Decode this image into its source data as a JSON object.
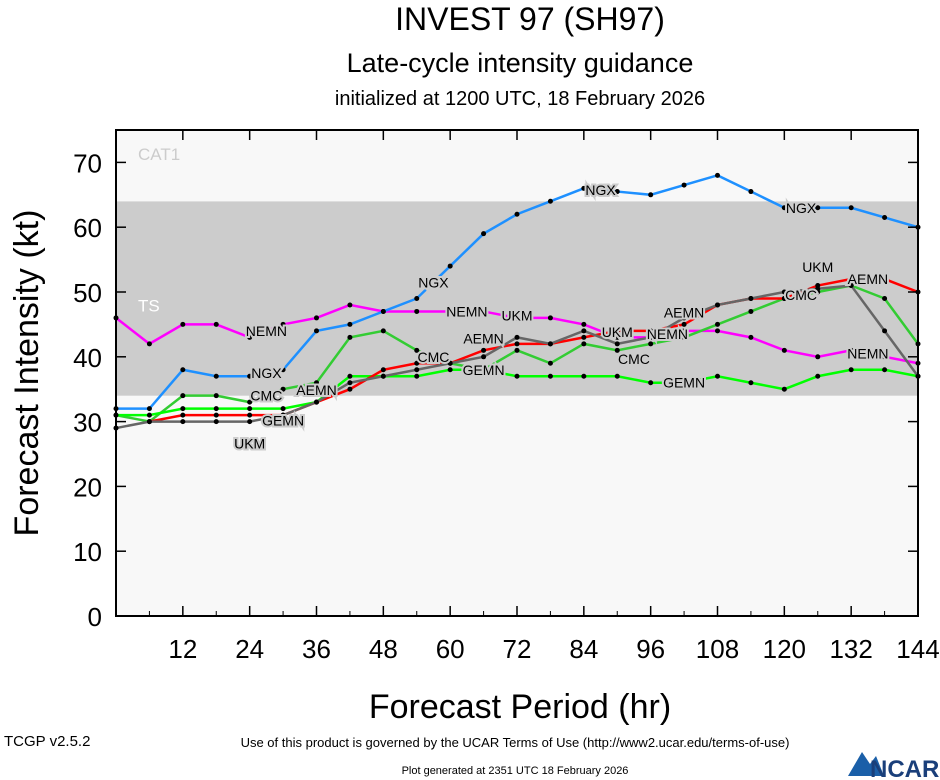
{
  "chart_data": {
    "type": "line",
    "title": "INVEST 97 (SH97)",
    "subtitle": "Late-cycle intensity guidance",
    "subtitle2": "initialized at 1200 UTC, 18 February 2026",
    "xlabel": "Forecast Period (hr)",
    "ylabel": "Forecast Intensity (kt)",
    "xlim": [
      0,
      144
    ],
    "ylim": [
      0,
      75
    ],
    "xticks": [
      12,
      24,
      36,
      48,
      60,
      72,
      84,
      96,
      108,
      120,
      132,
      144
    ],
    "yticks": [
      0,
      10,
      20,
      30,
      40,
      50,
      60,
      70
    ],
    "bands": [
      {
        "label": "TS",
        "from": 34,
        "to": 64,
        "color": "#cccccc"
      },
      {
        "label": "CAT1",
        "from": 64,
        "to": 75,
        "color": "#f8f8f8"
      }
    ],
    "x": [
      0,
      6,
      12,
      18,
      24,
      30,
      36,
      42,
      48,
      54,
      60,
      66,
      72,
      78,
      84,
      90,
      96,
      102,
      108,
      114,
      120,
      126,
      132,
      138,
      144
    ],
    "series": [
      {
        "name": "NEMN",
        "color": "#ff00ff",
        "values": [
          46,
          42,
          45,
          45,
          43,
          45,
          46,
          48,
          47,
          47,
          47,
          47,
          46,
          46,
          45,
          43,
          43,
          44,
          44,
          43,
          41,
          40,
          41,
          40,
          39
        ]
      },
      {
        "name": "NGX",
        "color": "#1e90ff",
        "values": [
          32,
          32,
          38,
          37,
          37,
          38,
          44,
          45,
          47,
          49,
          54,
          59,
          62,
          64,
          66,
          65.5,
          65,
          66.5,
          68,
          65.5,
          63,
          63,
          63,
          61.5,
          60
        ]
      },
      {
        "name": "CMC",
        "color": "#33cc33",
        "values": [
          31,
          30,
          34,
          34,
          33,
          35,
          36,
          43,
          44,
          41,
          39,
          38,
          41,
          39,
          42,
          41,
          42,
          43,
          45,
          47,
          49,
          50,
          51,
          49,
          42
        ]
      },
      {
        "name": "GEMN",
        "color": "#00ff00",
        "values": [
          31,
          31,
          32,
          32,
          32,
          32,
          33,
          37,
          37,
          37,
          38,
          38,
          37,
          37,
          37,
          37,
          36,
          36,
          37,
          36,
          35,
          37,
          38,
          38,
          37
        ]
      },
      {
        "name": "AEMN",
        "color": "#ff0000",
        "values": [
          null,
          30,
          31,
          31,
          31,
          31,
          33,
          35,
          38,
          39,
          39,
          41,
          42,
          42,
          43,
          44,
          44,
          45,
          48,
          49,
          49,
          51,
          52,
          52,
          50
        ]
      },
      {
        "name": "UKM",
        "color": "#666666",
        "values": [
          29,
          30,
          30,
          30,
          30,
          31,
          33,
          36,
          37,
          38,
          39,
          40,
          43,
          42,
          44,
          42,
          43,
          46,
          48,
          49,
          50,
          50.5,
          51,
          44,
          37
        ]
      }
    ]
  },
  "footer": {
    "version": "TCGP v2.5.2",
    "terms": "Use of this product is governed by the UCAR Terms of Use (http://www2.ucar.edu/terms-of-use)",
    "generated": "Plot generated at 2351 UTC   18 February 2026",
    "logo": "NCAR"
  }
}
